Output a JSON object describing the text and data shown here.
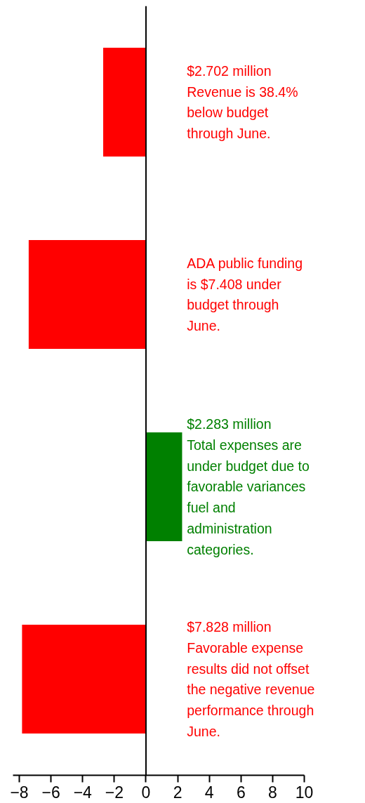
{
  "chart_data": {
    "type": "bar",
    "orientation": "horizontal",
    "categories": [
      null,
      null,
      null,
      null
    ],
    "values": [
      -2.702,
      -7.408,
      2.283,
      -7.828
    ],
    "colors": [
      "#ff0000",
      "#ff0000",
      "#008000",
      "#ff0000"
    ],
    "xlim": [
      -8.4,
      10
    ],
    "xticks": [
      -8,
      -6,
      -4,
      -2,
      0,
      2,
      4,
      6,
      8,
      10
    ],
    "annotations": [
      "$2.702 million\nRevenue is 38.4%\nbelow budget\nthrough June.",
      "ADA public funding\nis $7.408 under\nbudget through\nJune.",
      "$2.283 million\nTotal expenses are\nunder budget due to\nfavorable variances\nfuel and\nadministration\ncategories.",
      "$7.828 million\nFavorable expense\nresults did not  offset\nthe negative revenue\nperformance through\nJune."
    ]
  }
}
